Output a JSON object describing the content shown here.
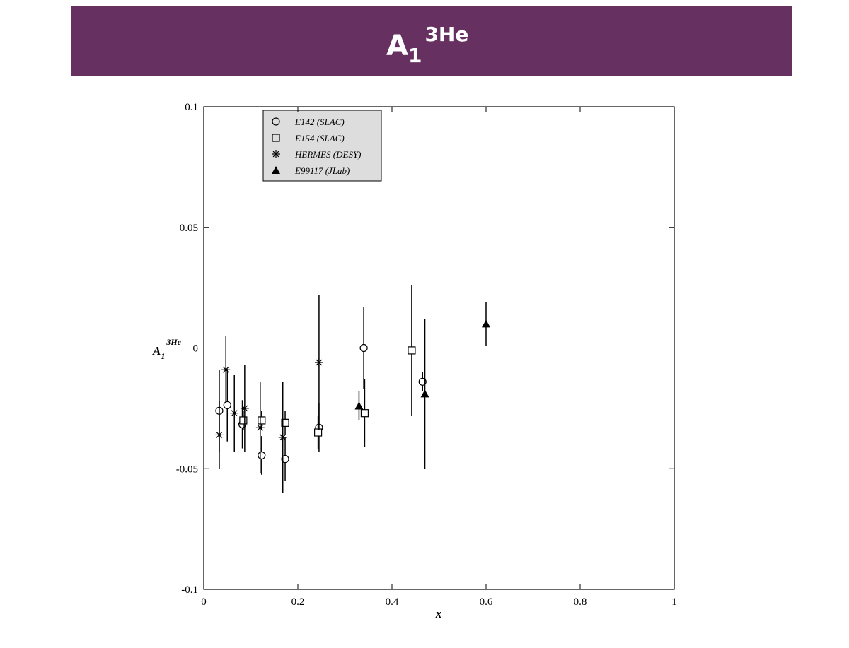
{
  "chart_data": {
    "type": "scatter",
    "title": {
      "main": "A",
      "sub": "1",
      "sup": "3He"
    },
    "x_label": "x",
    "y_label": {
      "main": "A",
      "sub": "1",
      "sup": "3He"
    },
    "xlim": [
      0,
      1
    ],
    "xticks": [
      0,
      0.2,
      0.4,
      0.6,
      0.8,
      1
    ],
    "ylim": [
      -0.1,
      0.1
    ],
    "yticks": [
      -0.1,
      -0.05,
      0,
      0.05,
      0.1
    ],
    "zero_line": true,
    "series": [
      {
        "name": "E142 (SLAC)",
        "marker": "circle",
        "color": "#000000",
        "x": [
          0.033,
          0.05,
          0.082,
          0.123,
          0.173,
          0.245,
          0.34,
          0.465
        ],
        "values": [
          -0.026,
          -0.0237,
          -0.0316,
          -0.0445,
          -0.046,
          -0.033,
          0.0,
          -0.014
        ],
        "errors": [
          0.017,
          0.015,
          0.01,
          0.008,
          0.009,
          0.01,
          0.017,
          0.004
        ]
      },
      {
        "name": "E154 (SLAC)",
        "marker": "square",
        "color": "#000000",
        "x": [
          0.084,
          0.123,
          0.173,
          0.243,
          0.342,
          0.442
        ],
        "values": [
          -0.03,
          -0.03,
          -0.031,
          -0.035,
          -0.027,
          -0.001
        ],
        "errors": [
          0.004,
          0.004,
          0.005,
          0.007,
          0.014,
          0.027
        ]
      },
      {
        "name": "HERMES (DESY)",
        "marker": "star",
        "color": "#000000",
        "x": [
          0.033,
          0.047,
          0.065,
          0.087,
          0.12,
          0.168,
          0.245
        ],
        "values": [
          -0.036,
          -0.009,
          -0.027,
          -0.025,
          -0.033,
          -0.037,
          -0.006
        ],
        "errors": [
          0.014,
          0.014,
          0.016,
          0.018,
          0.019,
          0.023,
          0.028
        ]
      },
      {
        "name": "E99117 (JLab)",
        "marker": "triangle",
        "color": "#000000",
        "x": [
          0.33,
          0.47,
          0.6
        ],
        "values": [
          -0.024,
          -0.019,
          0.01
        ],
        "errors": [
          0.006,
          0.031,
          0.009
        ]
      }
    ]
  }
}
